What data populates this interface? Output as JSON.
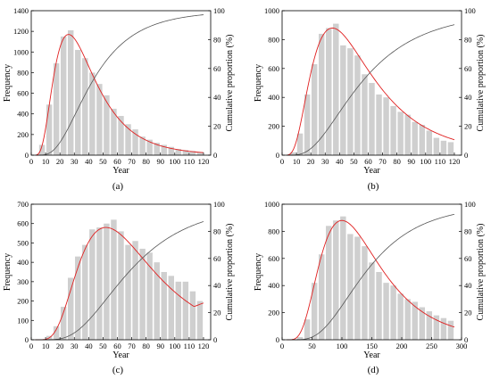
{
  "colors": {
    "bar": "#cfcfcf",
    "fit": "#e02020",
    "cumulative": "#555555",
    "axis": "#000000"
  },
  "chart_data": [
    {
      "panel": "(a)",
      "type": "bar",
      "xlabel": "Year",
      "ylabel": "Frequency",
      "y2label": "Cumulative proportion (%)",
      "xlim": [
        0,
        125
      ],
      "ylim": [
        0,
        1400
      ],
      "y2lim": [
        0,
        100
      ],
      "xticks": [
        0,
        10,
        20,
        30,
        40,
        50,
        60,
        70,
        80,
        90,
        100,
        110,
        120
      ],
      "yticks": [
        0,
        200,
        400,
        600,
        800,
        1000,
        1200,
        1400
      ],
      "y2ticks": [
        0,
        20,
        40,
        60,
        80,
        100
      ],
      "bin_width": 5,
      "x": [
        7.5,
        12.5,
        17.5,
        22.5,
        27.5,
        32.5,
        37.5,
        42.5,
        47.5,
        52.5,
        57.5,
        62.5,
        67.5,
        72.5,
        77.5,
        82.5,
        87.5,
        92.5,
        97.5,
        102.5,
        107.5,
        112.5,
        117.5
      ],
      "values": [
        100,
        490,
        890,
        1150,
        1210,
        1020,
        940,
        800,
        690,
        580,
        450,
        380,
        300,
        250,
        180,
        150,
        120,
        100,
        80,
        60,
        50,
        40,
        30
      ],
      "fit": {
        "mode": 26,
        "peak": 1170,
        "sigma": 0.55,
        "tail_end": 0
      },
      "cumulative": {
        "median": 42,
        "sigma": 0.55
      }
    },
    {
      "panel": "(b)",
      "type": "bar",
      "xlabel": "Year",
      "ylabel": "Frequency",
      "y2label": "Cumulative proportion (%)",
      "xlim": [
        0,
        125
      ],
      "ylim": [
        0,
        1000
      ],
      "y2lim": [
        0,
        100
      ],
      "xticks": [
        0,
        10,
        20,
        30,
        40,
        50,
        60,
        70,
        80,
        90,
        100,
        110,
        120
      ],
      "yticks": [
        0,
        200,
        400,
        600,
        800,
        1000
      ],
      "y2ticks": [
        0,
        20,
        40,
        60,
        80,
        100
      ],
      "bin_width": 5,
      "x": [
        7.5,
        12.5,
        17.5,
        22.5,
        27.5,
        32.5,
        37.5,
        42.5,
        47.5,
        52.5,
        57.5,
        62.5,
        67.5,
        72.5,
        77.5,
        82.5,
        87.5,
        92.5,
        97.5,
        102.5,
        107.5,
        112.5,
        117.5
      ],
      "values": [
        20,
        150,
        420,
        630,
        840,
        880,
        910,
        760,
        740,
        690,
        560,
        500,
        420,
        400,
        340,
        300,
        280,
        230,
        210,
        170,
        120,
        100,
        90
      ],
      "fit": {
        "mode": 35,
        "peak": 880,
        "sigma": 0.6,
        "tail_end": 0
      },
      "cumulative": {
        "median": 55,
        "sigma": 0.6
      }
    },
    {
      "panel": "(c)",
      "type": "bar",
      "xlabel": "Year",
      "ylabel": "Frequency",
      "y2label": "Cumulative proportion (%)",
      "xlim": [
        0,
        125
      ],
      "ylim": [
        0,
        700
      ],
      "y2lim": [
        0,
        100
      ],
      "xticks": [
        0,
        10,
        20,
        30,
        40,
        50,
        60,
        70,
        80,
        90,
        100,
        110,
        120
      ],
      "yticks": [
        0,
        100,
        200,
        300,
        400,
        500,
        600,
        700
      ],
      "y2ticks": [
        0,
        20,
        40,
        60,
        80,
        100
      ],
      "bin_width": 5,
      "x": [
        12.5,
        17.5,
        22.5,
        27.5,
        32.5,
        37.5,
        42.5,
        47.5,
        52.5,
        57.5,
        62.5,
        67.5,
        72.5,
        77.5,
        82.5,
        87.5,
        92.5,
        97.5,
        102.5,
        107.5,
        112.5,
        117.5
      ],
      "values": [
        20,
        70,
        170,
        320,
        430,
        490,
        570,
        580,
        600,
        620,
        560,
        490,
        510,
        470,
        450,
        400,
        350,
        330,
        300,
        300,
        250,
        200
      ],
      "fit": {
        "mode": 52,
        "peak": 580,
        "sigma": 0.5,
        "tail_end": 190
      },
      "cumulative": {
        "median": 68,
        "sigma": 0.5
      }
    },
    {
      "panel": "(d)",
      "type": "bar",
      "xlabel": "Year",
      "ylabel": "Frequency",
      "y2label": "Cumulative proportion (%)",
      "xlim": [
        0,
        300
      ],
      "ylim": [
        0,
        1000
      ],
      "y2lim": [
        0,
        100
      ],
      "xticks": [
        0,
        50,
        100,
        150,
        200,
        250,
        300
      ],
      "yticks": [
        0,
        200,
        400,
        600,
        800,
        1000
      ],
      "y2ticks": [
        0,
        20,
        40,
        60,
        80,
        100
      ],
      "bin_width": 12,
      "x": [
        30,
        42,
        54,
        66,
        78,
        90,
        102,
        114,
        126,
        138,
        150,
        162,
        174,
        186,
        198,
        210,
        222,
        234,
        246,
        258,
        270,
        282
      ],
      "values": [
        20,
        150,
        420,
        630,
        840,
        880,
        910,
        780,
        760,
        690,
        570,
        500,
        420,
        400,
        340,
        300,
        280,
        240,
        210,
        180,
        160,
        140
      ],
      "fit": {
        "mode": 100,
        "peak": 880,
        "sigma": 0.5,
        "tail_end": 0
      },
      "cumulative": {
        "median": 140,
        "sigma": 0.5
      }
    }
  ]
}
